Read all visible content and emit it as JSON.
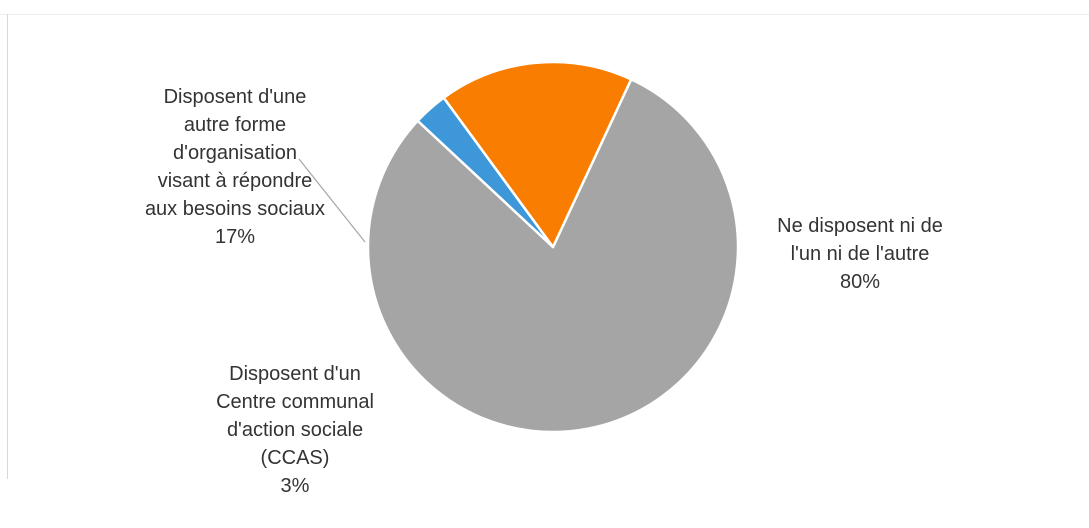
{
  "chart_data": {
    "type": "pie",
    "title": "",
    "start_angle_deg": -65,
    "slices": [
      {
        "label": "Ne disposent ni de\nl'un ni de l'autre",
        "value": 80,
        "value_label": "80%",
        "color": "#a5a5a5"
      },
      {
        "label": "Disposent d'un\nCentre communal\nd'action sociale\n(CCAS)",
        "value": 3,
        "value_label": "3%",
        "color": "#3d97d9"
      },
      {
        "label": "Disposent d'une\nautre forme\nd'organisation\nvisant à répondre\naux besoins sociaux",
        "value": 17,
        "value_label": "17%",
        "color": "#f97d00"
      }
    ]
  }
}
